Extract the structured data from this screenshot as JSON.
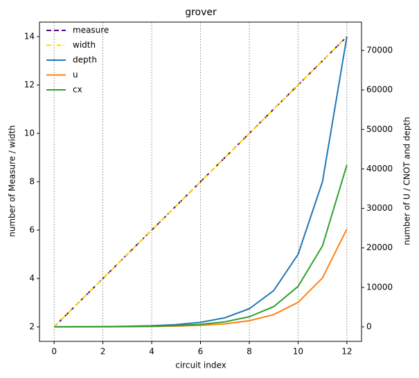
{
  "chart_data": {
    "type": "line",
    "title": "grover",
    "xlabel": "circuit index",
    "ylabel": "number of Measure / width",
    "y2label": "number of U / CNOT and depth",
    "x": [
      0,
      1,
      2,
      3,
      4,
      5,
      6,
      7,
      8,
      9,
      10,
      11,
      12
    ],
    "xlim": [
      -0.6,
      12.6
    ],
    "xticks": [
      0,
      2,
      4,
      6,
      8,
      10,
      12
    ],
    "ylim": [
      1.4,
      14.6
    ],
    "yticks": [
      2,
      4,
      6,
      8,
      10,
      12,
      14
    ],
    "y2lim": [
      -3675,
      77175
    ],
    "y2ticks": [
      0,
      10000,
      20000,
      30000,
      40000,
      50000,
      60000,
      70000
    ],
    "grid": "x",
    "legend": "upper left",
    "series": [
      {
        "name": "measure",
        "color": "#4b0082",
        "linestyle": "dashed",
        "values": [
          2,
          3,
          4,
          5,
          6,
          7,
          8,
          9,
          10,
          11,
          12,
          13,
          14
        ]
      },
      {
        "name": "width",
        "color": "#ffd700",
        "linestyle": "dashdot",
        "values": [
          2,
          3,
          4,
          5,
          6,
          7,
          8,
          9,
          10,
          11,
          12,
          13,
          14
        ]
      },
      {
        "name": "depth",
        "color": "#1f77b4",
        "linestyle": "solid",
        "axis": "y2",
        "values": [
          18,
          36,
          72,
          143,
          287,
          574,
          1148,
          2297,
          4594,
          9187,
          18375,
          36750,
          73500
        ]
      },
      {
        "name": "u",
        "color": "#ff7f0e",
        "linestyle": "solid",
        "axis": "y2",
        "values": [
          6,
          12,
          24,
          48,
          97,
          194,
          388,
          775,
          1550,
          3100,
          6200,
          12400,
          24800
        ]
      },
      {
        "name": "cx",
        "color": "#2ca02c",
        "linestyle": "solid",
        "axis": "y2",
        "values": [
          10,
          20,
          40,
          80,
          160,
          320,
          640,
          1280,
          2560,
          5125,
          10250,
          20500,
          41000
        ]
      }
    ]
  }
}
